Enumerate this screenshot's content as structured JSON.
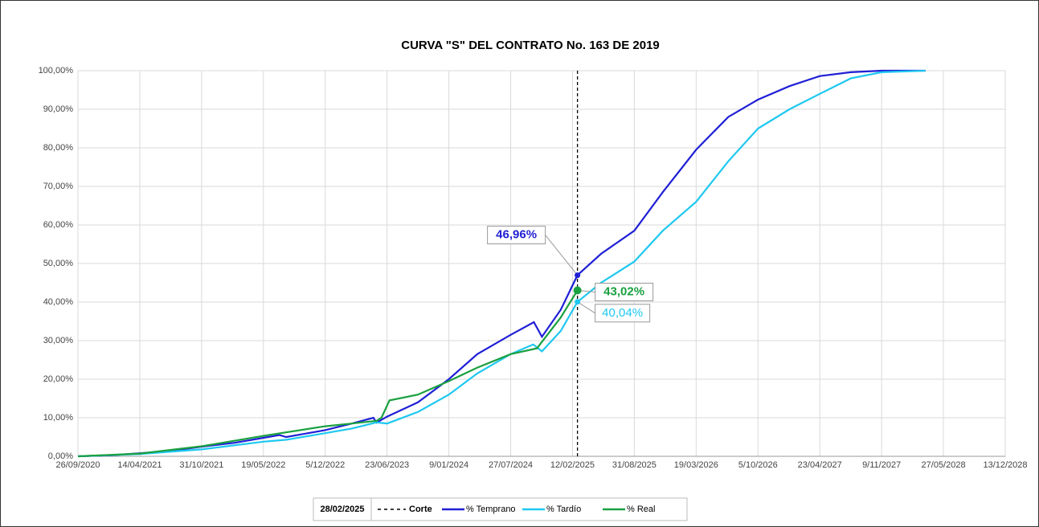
{
  "chart_data": {
    "type": "line",
    "title": "CURVA \"S\" DEL CONTRATO No. 163 DE 2019",
    "xlim": [
      "2020-09-26",
      "2028-12-13"
    ],
    "xticks": [
      {
        "value": "2020-09-26",
        "label": "26/09/2020"
      },
      {
        "value": "2021-04-14",
        "label": "14/04/2021"
      },
      {
        "value": "2021-10-31",
        "label": "31/10/2021"
      },
      {
        "value": "2022-05-19",
        "label": "19/05/2022"
      },
      {
        "value": "2022-12-05",
        "label": "5/12/2022"
      },
      {
        "value": "2023-06-23",
        "label": "23/06/2023"
      },
      {
        "value": "2024-01-09",
        "label": "9/01/2024"
      },
      {
        "value": "2024-07-27",
        "label": "27/07/2024"
      },
      {
        "value": "2025-02-12",
        "label": "12/02/2025"
      },
      {
        "value": "2025-08-31",
        "label": "31/08/2025"
      },
      {
        "value": "2026-03-19",
        "label": "19/03/2026"
      },
      {
        "value": "2026-10-05",
        "label": "5/10/2026"
      },
      {
        "value": "2027-04-23",
        "label": "23/04/2027"
      },
      {
        "value": "2027-11-09",
        "label": "9/11/2027"
      },
      {
        "value": "2028-05-27",
        "label": "27/05/2028"
      },
      {
        "value": "2028-12-13",
        "label": "13/12/2028"
      }
    ],
    "ylim": [
      0,
      100
    ],
    "yticks": [
      {
        "value": 0,
        "label": "0,00%"
      },
      {
        "value": 10,
        "label": "10,00%"
      },
      {
        "value": 20,
        "label": "20,00%"
      },
      {
        "value": 30,
        "label": "30,00%"
      },
      {
        "value": 40,
        "label": "40,00%"
      },
      {
        "value": 50,
        "label": "50,00%"
      },
      {
        "value": 60,
        "label": "60,00%"
      },
      {
        "value": 70,
        "label": "70,00%"
      },
      {
        "value": 80,
        "label": "80,00%"
      },
      {
        "value": 90,
        "label": "90,00%"
      },
      {
        "value": 100,
        "label": "100,00%"
      }
    ],
    "grid": true,
    "cutoff": {
      "x": "2025-02-28",
      "date_label": "28/02/2025",
      "name": "Corte"
    },
    "series": [
      {
        "name": "% Temprano",
        "color": "#1f1fd6",
        "x": [
          "2020-09-26",
          "2021-01-15",
          "2021-04-14",
          "2021-08-01",
          "2021-10-31",
          "2022-02-15",
          "2022-05-19",
          "2022-07-10",
          "2022-08-01",
          "2022-12-05",
          "2023-03-01",
          "2023-05-10",
          "2023-05-20",
          "2023-06-23",
          "2023-10-01",
          "2024-01-09",
          "2024-04-10",
          "2024-07-27",
          "2024-10-10",
          "2024-11-05",
          "2025-01-05",
          "2025-02-28",
          "2025-05-15",
          "2025-08-31",
          "2025-12-01",
          "2026-03-19",
          "2026-07-01",
          "2026-10-05",
          "2027-01-15",
          "2027-04-23",
          "2027-08-01",
          "2027-11-09",
          "2028-03-30"
        ],
        "values": [
          0,
          0.3,
          0.8,
          1.5,
          2.5,
          3.5,
          4.8,
          5.5,
          5.0,
          6.8,
          8.5,
          10.0,
          8.7,
          10.3,
          14.0,
          20.0,
          26.5,
          31.5,
          34.8,
          31.0,
          38.0,
          46.96,
          52.5,
          58.5,
          68.5,
          79.5,
          88.0,
          92.5,
          96.0,
          98.6,
          99.6,
          100,
          100
        ],
        "value_labels": [
          null,
          null,
          null,
          null,
          null,
          null,
          null,
          null,
          null,
          null,
          null,
          null,
          null,
          null,
          null,
          null,
          null,
          null,
          null,
          null,
          null,
          "46,96%",
          null,
          null,
          null,
          null,
          null,
          null,
          null,
          null,
          null,
          null,
          null
        ]
      },
      {
        "name": "% Tardío",
        "color": "#1ec8f0",
        "x": [
          "2020-09-26",
          "2021-04-14",
          "2021-10-31",
          "2022-05-19",
          "2022-08-01",
          "2022-12-05",
          "2023-03-01",
          "2023-05-20",
          "2023-06-23",
          "2023-10-01",
          "2024-01-09",
          "2024-04-10",
          "2024-07-27",
          "2024-10-08",
          "2024-11-05",
          "2025-01-05",
          "2025-02-28",
          "2025-05-15",
          "2025-08-31",
          "2025-12-01",
          "2026-03-19",
          "2026-07-01",
          "2026-10-05",
          "2027-01-15",
          "2027-04-23",
          "2027-08-01",
          "2027-11-09",
          "2028-03-30"
        ],
        "values": [
          0,
          0.6,
          1.8,
          3.8,
          4.3,
          6.0,
          7.2,
          8.8,
          8.5,
          11.5,
          16.0,
          21.5,
          26.5,
          29.0,
          27.2,
          32.5,
          40.04,
          45.0,
          50.5,
          58.5,
          66.0,
          76.5,
          85.0,
          90.0,
          94.0,
          98.0,
          99.6,
          100
        ],
        "value_labels": [
          null,
          null,
          null,
          null,
          null,
          null,
          null,
          null,
          null,
          null,
          null,
          null,
          null,
          null,
          null,
          null,
          "40,04%",
          null,
          null,
          null,
          null,
          null,
          null,
          null,
          null,
          null,
          null,
          null
        ]
      },
      {
        "name": "% Real",
        "color": "#1aa040",
        "x": [
          "2020-09-26",
          "2021-04-14",
          "2021-10-31",
          "2022-05-19",
          "2022-12-05",
          "2023-03-01",
          "2023-05-20",
          "2023-06-05",
          "2023-07-01",
          "2023-10-01",
          "2024-01-09",
          "2024-04-10",
          "2024-07-27",
          "2024-10-20",
          "2025-01-05",
          "2025-02-28"
        ],
        "values": [
          0,
          0.7,
          2.6,
          5.3,
          7.8,
          8.5,
          9.2,
          10.0,
          14.5,
          16.0,
          19.5,
          23.0,
          26.5,
          28.0,
          36.0,
          43.02
        ],
        "value_labels": [
          null,
          null,
          null,
          null,
          null,
          null,
          null,
          null,
          null,
          null,
          null,
          null,
          null,
          null,
          null,
          "43,02%"
        ]
      }
    ]
  }
}
